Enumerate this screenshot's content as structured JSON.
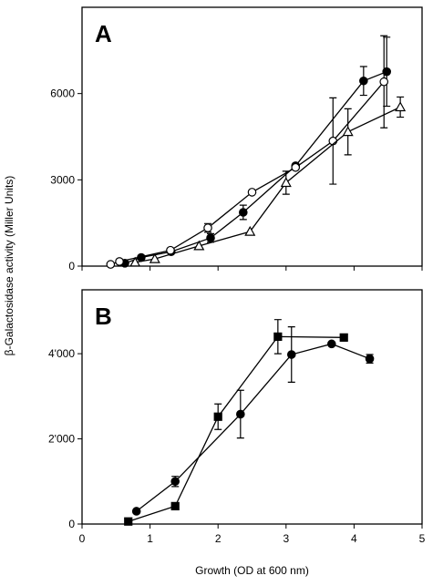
{
  "chart_data": [
    {
      "type": "line",
      "label": "A",
      "ylabel": "β-Galactosidase activity (Miller Units)",
      "xlim": [
        0,
        5
      ],
      "xticks": [
        0,
        1,
        2,
        3,
        4,
        5
      ],
      "ylim": [
        0,
        9000
      ],
      "yticks": [
        0,
        3000,
        6000
      ],
      "series": [
        {
          "marker": "circle-filled",
          "color": "#000000",
          "x": [
            0.63,
            0.87,
            1.31,
            1.89,
            2.37,
            3.14,
            4.14,
            4.48
          ],
          "values": [
            100,
            300,
            500,
            980,
            1870,
            3490,
            6440,
            6760
          ],
          "errors": [
            null,
            null,
            null,
            150,
            250,
            null,
            500,
            1200
          ]
        },
        {
          "marker": "circle-open",
          "color": "#000000",
          "x": [
            0.42,
            0.55,
            1.3,
            1.85,
            2.5,
            3.14,
            3.69,
            4.44
          ],
          "values": [
            60,
            160,
            550,
            1330,
            2570,
            3430,
            4350,
            6410
          ],
          "errors": [
            null,
            null,
            null,
            150,
            null,
            null,
            1500,
            1600
          ]
        },
        {
          "marker": "triangle-open",
          "color": "#000000",
          "x": [
            0.78,
            1.07,
            1.72,
            2.47,
            3.0,
            3.91,
            4.68
          ],
          "values": [
            130,
            250,
            700,
            1200,
            2900,
            4670,
            5530
          ],
          "errors": [
            null,
            null,
            null,
            null,
            400,
            800,
            350
          ]
        }
      ]
    },
    {
      "type": "line",
      "label": "B",
      "xlabel": "Growth (OD at 600 nm)",
      "xlim": [
        0,
        5
      ],
      "xticks": [
        0,
        1,
        2,
        3,
        4,
        5
      ],
      "ylim": [
        0,
        5500
      ],
      "yticks": [
        0,
        {
          "value": 2000,
          "label": "2'000"
        },
        {
          "value": 4000,
          "label": "4'000"
        }
      ],
      "series": [
        {
          "marker": "square-filled",
          "color": "#000000",
          "x": [
            0.68,
            1.37,
            2.0,
            2.88,
            3.85
          ],
          "values": [
            60,
            420,
            2520,
            4400,
            4380
          ],
          "errors": [
            null,
            null,
            300,
            400,
            80
          ]
        },
        {
          "marker": "circle-filled",
          "color": "#000000",
          "x": [
            0.8,
            1.37,
            2.33,
            3.08,
            3.67,
            4.23
          ],
          "values": [
            300,
            1000,
            2580,
            3980,
            4230,
            3880
          ],
          "errors": [
            null,
            120,
            560,
            650,
            null,
            100
          ]
        }
      ]
    }
  ]
}
